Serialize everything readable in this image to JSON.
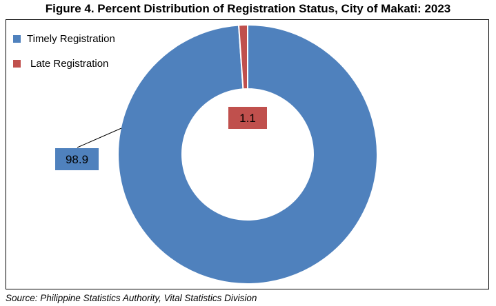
{
  "title": "Figure 4.  Percent Distribution of Registration Status, City of Makati: 2023",
  "source": "Source: Philippine Statistics Authority, Vital Statistics Division",
  "chart_data": {
    "type": "pie",
    "variant": "donut",
    "title": "Figure 4.  Percent Distribution of Registration Status, City of Makati: 2023",
    "legend_position": "top-left",
    "series": [
      {
        "name": "Timely Registration",
        "value": 98.9,
        "label": "98.9",
        "color": "#4f81bd"
      },
      {
        "name": "Late Registration",
        "value": 1.1,
        "label": "1.1",
        "color": "#c0504d"
      }
    ]
  }
}
